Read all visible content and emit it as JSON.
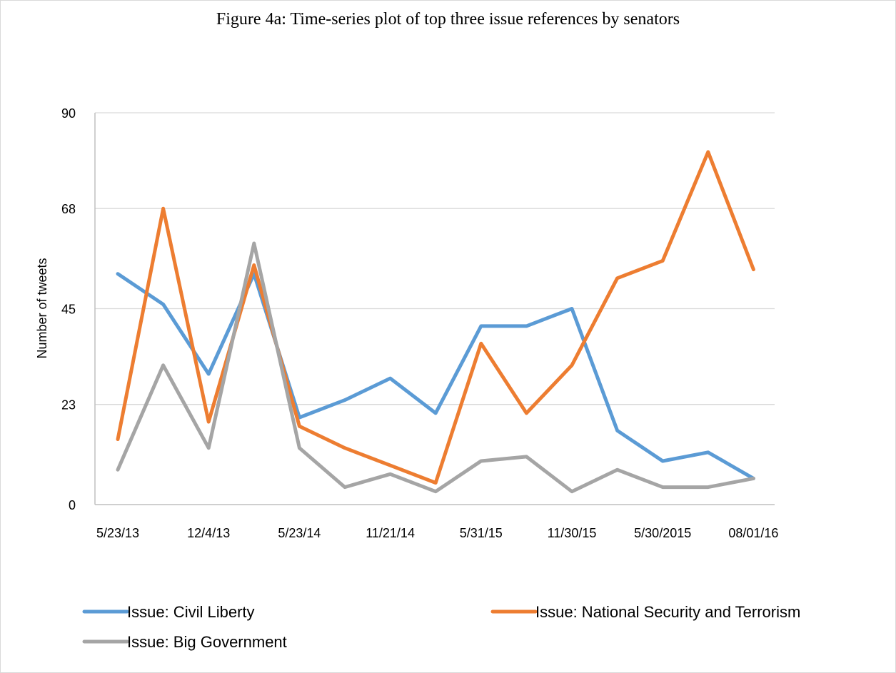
{
  "figure_caption": "Figure 4a: Time-series plot of top three issue references by senators",
  "chart_data": {
    "type": "line",
    "title": "",
    "xlabel": "",
    "ylabel": "Number of tweets",
    "ylim": [
      0,
      90
    ],
    "yticks": [
      0,
      23,
      45,
      68,
      90
    ],
    "x_tick_labels": [
      "5/23/13",
      "12/4/13",
      "5/23/14",
      "11/21/14",
      "5/31/15",
      "11/30/15",
      "5/30/2015",
      "08/01/16"
    ],
    "x_tick_label_indices": [
      0,
      2,
      4,
      6,
      8,
      10,
      12,
      14
    ],
    "grid": true,
    "legend": "bottom",
    "series": [
      {
        "name": "Issue: Civil Liberty",
        "color": "#5b9bd5",
        "values": [
          53,
          46,
          30,
          53,
          20,
          24,
          29,
          21,
          41,
          41,
          45,
          17,
          10,
          12,
          6
        ]
      },
      {
        "name": "Issue: National Security and Terrorism",
        "color": "#ed7d31",
        "values": [
          15,
          68,
          19,
          55,
          18,
          13,
          9,
          5,
          37,
          21,
          32,
          52,
          56,
          81,
          54
        ]
      },
      {
        "name": "Issue: Big Government",
        "color": "#a5a5a5",
        "values": [
          8,
          32,
          13,
          60,
          13,
          4,
          7,
          3,
          10,
          11,
          3,
          8,
          4,
          4,
          6
        ]
      }
    ]
  }
}
